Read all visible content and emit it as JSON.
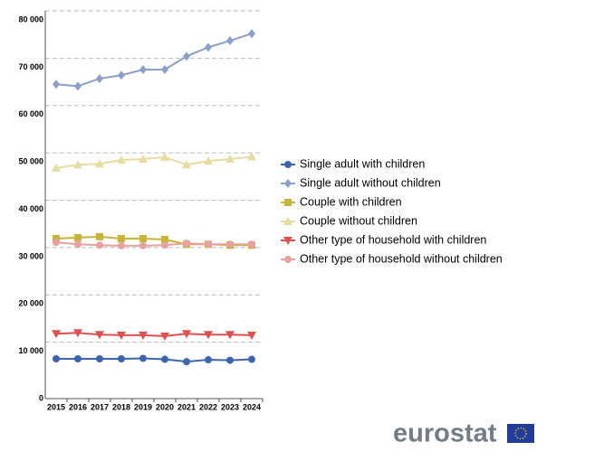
{
  "chart_data": {
    "type": "line",
    "categories": [
      "2015",
      "2016",
      "2017",
      "2018",
      "2019",
      "2020",
      "2021",
      "2022",
      "2023",
      "2024"
    ],
    "ylim": [
      0,
      80000
    ],
    "yticks": [
      0,
      {
        "value": 10000,
        "label": "10 000"
      },
      {
        "value": 20000,
        "label": "20 000"
      },
      {
        "value": 30000,
        "label": "30 000"
      },
      {
        "value": 40000,
        "label": "40 000"
      },
      {
        "value": 50000,
        "label": "50 000"
      },
      {
        "value": 60000,
        "label": "60 000"
      },
      {
        "value": 70000,
        "label": "70 000"
      },
      {
        "value": 80000,
        "label": "80 000"
      }
    ],
    "grid": true,
    "legend": "right",
    "series": [
      {
        "name": "Single adult with children",
        "color": "#3c65b0",
        "marker": "circle",
        "values": [
          8400,
          8400,
          8400,
          8400,
          8500,
          8300,
          7800,
          8200,
          8100,
          8300
        ]
      },
      {
        "name": "Single adult without children",
        "color": "#8aa0c8",
        "marker": "diamond",
        "values": [
          66400,
          66000,
          67600,
          68300,
          69500,
          69500,
          72300,
          74200,
          75600,
          77100
        ]
      },
      {
        "name": "Couple with children",
        "color": "#c8b439",
        "marker": "square",
        "values": [
          33800,
          34000,
          34200,
          33800,
          33800,
          33600,
          32600,
          32600,
          32400,
          32400
        ]
      },
      {
        "name": "Couple without children",
        "color": "#e8dca0",
        "marker": "triangle-up",
        "values": [
          48700,
          49400,
          49600,
          50400,
          50600,
          51000,
          49400,
          50200,
          50600,
          51100
        ]
      },
      {
        "name": "Other type of household with children",
        "color": "#e05050",
        "marker": "triangle-down",
        "values": [
          13700,
          13900,
          13500,
          13400,
          13400,
          13200,
          13700,
          13500,
          13500,
          13400
        ]
      },
      {
        "name": "Other type of household without children",
        "color": "#e8a0a0",
        "marker": "circle",
        "values": [
          33000,
          32600,
          32400,
          32300,
          32300,
          32400,
          32800,
          32600,
          32600,
          32600
        ]
      }
    ],
    "logo_text": "eurostat"
  }
}
